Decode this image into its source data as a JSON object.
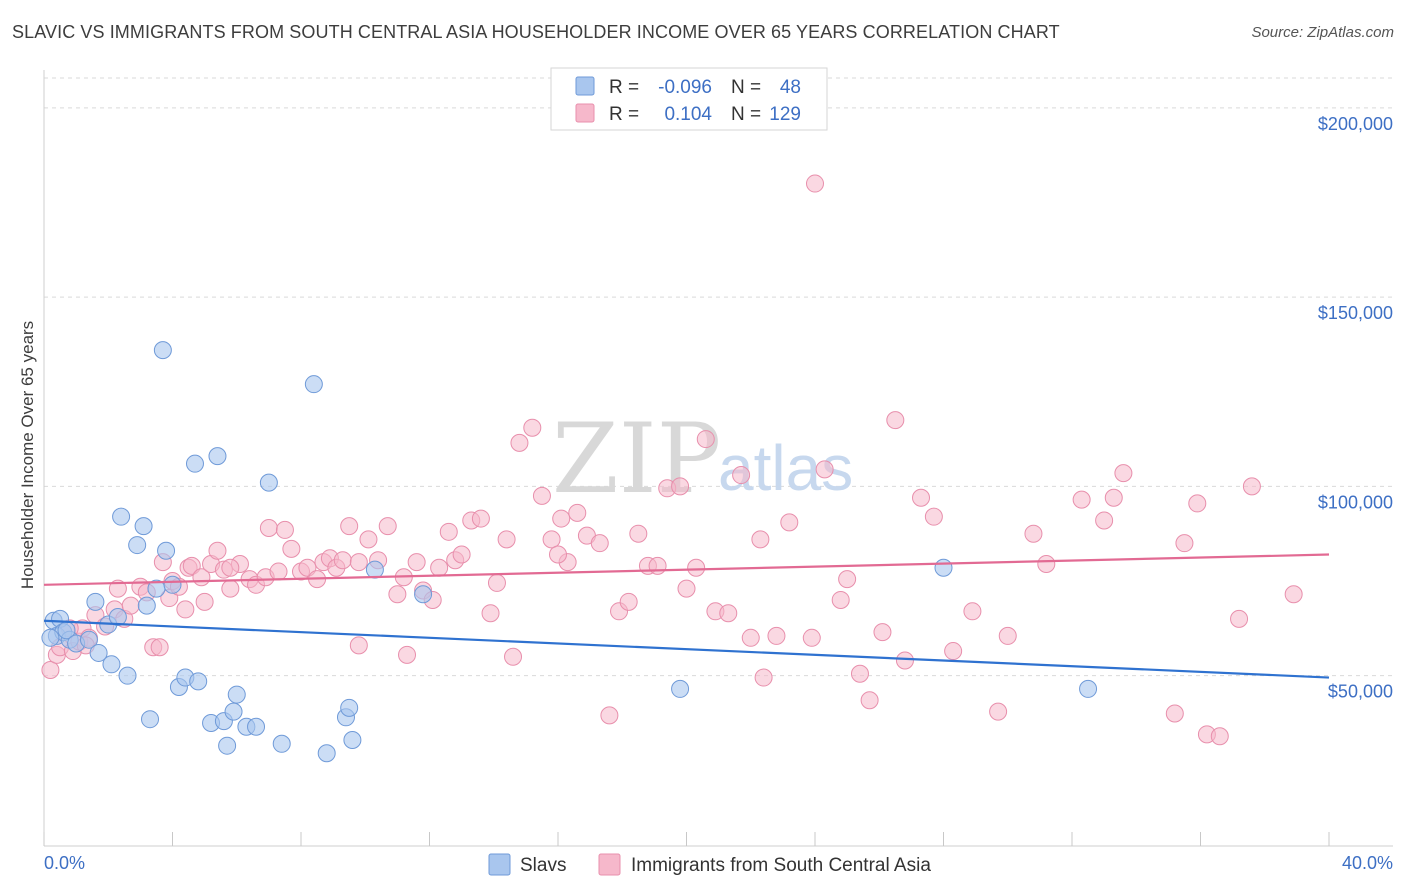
{
  "title": "SLAVIC VS IMMIGRANTS FROM SOUTH CENTRAL ASIA HOUSEHOLDER INCOME OVER 65 YEARS CORRELATION CHART",
  "source": "Source: ZipAtlas.com",
  "watermark": {
    "zip": "ZIP",
    "atlas": "atlas"
  },
  "colors": {
    "slavs_fill": "#a9c6ee",
    "slavs_stroke": "#6f9ad8",
    "slavs_line": "#2f72d0",
    "imm_fill": "#f6b8cb",
    "imm_stroke": "#e88fac",
    "imm_line": "#e26a93",
    "axis_label": "#3d6fc4",
    "grid": "#d9d9d9"
  },
  "legend_top": {
    "rows": [
      {
        "r_label": "R =",
        "r_value": "-0.096",
        "n_label": "N =",
        "n_value": "48"
      },
      {
        "r_label": "R =",
        "r_value": "0.104",
        "n_label": "N =",
        "n_value": "129"
      }
    ]
  },
  "legend_bottom": [
    "Slavs",
    "Immigrants from South Central Asia"
  ],
  "chart_data": {
    "type": "scatter",
    "title": "SLAVIC VS IMMIGRANTS FROM SOUTH CENTRAL ASIA HOUSEHOLDER INCOME OVER 65 YEARS CORRELATION CHART",
    "ylabel": "Householder Income Over 65 years",
    "xlabel": "",
    "x_tick_labels": [
      "0.0%",
      "40.0%"
    ],
    "y_tick_labels": [
      "$50,000",
      "$100,000",
      "$150,000",
      "$200,000"
    ],
    "y_ticks": [
      50000,
      100000,
      150000,
      200000
    ],
    "xlim": [
      0,
      40
    ],
    "ylim": [
      5000,
      210000
    ],
    "grid": true,
    "legend_placement": "top-center",
    "series": [
      {
        "name": "Slavs",
        "R": -0.096,
        "N": 48,
        "trend": {
          "x": [
            0,
            40
          ],
          "y": [
            64500,
            49500
          ]
        },
        "points": [
          [
            0.3,
            64500
          ],
          [
            0.5,
            65000
          ],
          [
            0.4,
            60500
          ],
          [
            0.6,
            61500
          ],
          [
            0.8,
            59500
          ],
          [
            0.7,
            62000
          ],
          [
            1.0,
            58500
          ],
          [
            1.4,
            59500
          ],
          [
            1.6,
            69500
          ],
          [
            1.7,
            56000
          ],
          [
            2.0,
            63500
          ],
          [
            2.1,
            53000
          ],
          [
            2.3,
            65500
          ],
          [
            2.6,
            50000
          ],
          [
            2.4,
            92000
          ],
          [
            2.9,
            84500
          ],
          [
            3.1,
            89500
          ],
          [
            3.2,
            68500
          ],
          [
            3.3,
            38500
          ],
          [
            3.5,
            73000
          ],
          [
            3.8,
            83000
          ],
          [
            4.0,
            74000
          ],
          [
            3.7,
            136000
          ],
          [
            4.2,
            47000
          ],
          [
            4.4,
            49500
          ],
          [
            4.8,
            48500
          ],
          [
            4.7,
            106000
          ],
          [
            5.2,
            37500
          ],
          [
            5.4,
            108000
          ],
          [
            5.6,
            38000
          ],
          [
            5.7,
            31500
          ],
          [
            5.9,
            40500
          ],
          [
            6.0,
            45000
          ],
          [
            6.3,
            36500
          ],
          [
            6.6,
            36500
          ],
          [
            7.0,
            101000
          ],
          [
            7.4,
            32000
          ],
          [
            8.4,
            127000
          ],
          [
            8.8,
            29500
          ],
          [
            9.4,
            39000
          ],
          [
            9.5,
            41500
          ],
          [
            9.6,
            33000
          ],
          [
            10.3,
            78000
          ],
          [
            11.8,
            71500
          ],
          [
            19.8,
            46500
          ],
          [
            28.0,
            78500
          ],
          [
            32.5,
            46500
          ],
          [
            0.2,
            60000
          ]
        ]
      },
      {
        "name": "Immigrants from South Central Asia",
        "R": 0.104,
        "N": 129,
        "trend": {
          "x": [
            0,
            40
          ],
          "y": [
            74000,
            82000
          ]
        },
        "points": [
          [
            0.2,
            51500
          ],
          [
            0.4,
            55500
          ],
          [
            0.5,
            57500
          ],
          [
            0.9,
            56500
          ],
          [
            1.1,
            59000
          ],
          [
            1.2,
            62500
          ],
          [
            1.4,
            60000
          ],
          [
            1.6,
            66000
          ],
          [
            1.9,
            63000
          ],
          [
            2.2,
            67500
          ],
          [
            2.3,
            73000
          ],
          [
            2.5,
            65000
          ],
          [
            2.7,
            68500
          ],
          [
            3.0,
            73500
          ],
          [
            3.2,
            72000
          ],
          [
            3.4,
            57500
          ],
          [
            3.7,
            80000
          ],
          [
            3.9,
            70500
          ],
          [
            4.0,
            75000
          ],
          [
            4.2,
            73500
          ],
          [
            4.4,
            67500
          ],
          [
            4.5,
            78500
          ],
          [
            4.6,
            79000
          ],
          [
            4.9,
            76000
          ],
          [
            5.0,
            69500
          ],
          [
            5.2,
            79500
          ],
          [
            5.4,
            83000
          ],
          [
            5.6,
            78000
          ],
          [
            5.8,
            73000
          ],
          [
            6.1,
            79500
          ],
          [
            6.4,
            75500
          ],
          [
            6.6,
            74000
          ],
          [
            6.9,
            76000
          ],
          [
            7.0,
            89000
          ],
          [
            7.3,
            77500
          ],
          [
            7.5,
            88500
          ],
          [
            7.7,
            83500
          ],
          [
            8.0,
            77500
          ],
          [
            8.2,
            78500
          ],
          [
            8.5,
            75500
          ],
          [
            8.7,
            80000
          ],
          [
            8.9,
            81000
          ],
          [
            9.1,
            78500
          ],
          [
            9.3,
            80500
          ],
          [
            9.5,
            89500
          ],
          [
            9.8,
            80000
          ],
          [
            10.1,
            86000
          ],
          [
            10.4,
            80500
          ],
          [
            10.7,
            89500
          ],
          [
            11.0,
            71500
          ],
          [
            11.2,
            76000
          ],
          [
            11.6,
            80000
          ],
          [
            11.8,
            72500
          ],
          [
            12.1,
            70000
          ],
          [
            12.3,
            78500
          ],
          [
            12.6,
            88000
          ],
          [
            12.8,
            80500
          ],
          [
            13.0,
            82000
          ],
          [
            13.3,
            91000
          ],
          [
            13.6,
            91500
          ],
          [
            13.9,
            66500
          ],
          [
            14.1,
            74500
          ],
          [
            14.4,
            86000
          ],
          [
            14.6,
            55000
          ],
          [
            14.8,
            111500
          ],
          [
            15.2,
            115500
          ],
          [
            15.5,
            97500
          ],
          [
            15.8,
            86000
          ],
          [
            16.1,
            91500
          ],
          [
            16.3,
            80000
          ],
          [
            16.6,
            93000
          ],
          [
            16.9,
            87000
          ],
          [
            17.3,
            85000
          ],
          [
            17.6,
            39500
          ],
          [
            17.9,
            67000
          ],
          [
            18.2,
            69500
          ],
          [
            18.5,
            87500
          ],
          [
            18.8,
            79000
          ],
          [
            19.1,
            79000
          ],
          [
            19.4,
            99500
          ],
          [
            19.8,
            100000
          ],
          [
            20.0,
            73000
          ],
          [
            20.3,
            78500
          ],
          [
            20.6,
            112500
          ],
          [
            20.9,
            67000
          ],
          [
            21.3,
            66500
          ],
          [
            21.7,
            103000
          ],
          [
            22.0,
            60000
          ],
          [
            22.3,
            86000
          ],
          [
            22.8,
            60500
          ],
          [
            23.2,
            90500
          ],
          [
            23.9,
            60000
          ],
          [
            24.3,
            104500
          ],
          [
            24.8,
            70000
          ],
          [
            25.0,
            75500
          ],
          [
            25.4,
            50500
          ],
          [
            25.7,
            43500
          ],
          [
            26.1,
            61500
          ],
          [
            26.5,
            117500
          ],
          [
            27.3,
            97000
          ],
          [
            27.7,
            92000
          ],
          [
            28.3,
            56500
          ],
          [
            28.9,
            67000
          ],
          [
            29.7,
            40500
          ],
          [
            30.0,
            60500
          ],
          [
            30.8,
            87500
          ],
          [
            31.2,
            79500
          ],
          [
            32.3,
            96500
          ],
          [
            33.0,
            91000
          ],
          [
            33.3,
            97000
          ],
          [
            33.6,
            103500
          ],
          [
            35.2,
            40000
          ],
          [
            35.5,
            85000
          ],
          [
            35.9,
            95500
          ],
          [
            36.2,
            34500
          ],
          [
            36.6,
            34000
          ],
          [
            37.2,
            65000
          ],
          [
            37.6,
            100000
          ],
          [
            38.9,
            71500
          ],
          [
            24.0,
            180000
          ],
          [
            0.8,
            62500
          ],
          [
            1.3,
            58000
          ],
          [
            3.6,
            57500
          ],
          [
            5.8,
            78500
          ],
          [
            9.8,
            58000
          ],
          [
            11.3,
            55500
          ],
          [
            16.0,
            82000
          ],
          [
            22.4,
            49500
          ],
          [
            26.8,
            54000
          ]
        ]
      }
    ]
  }
}
